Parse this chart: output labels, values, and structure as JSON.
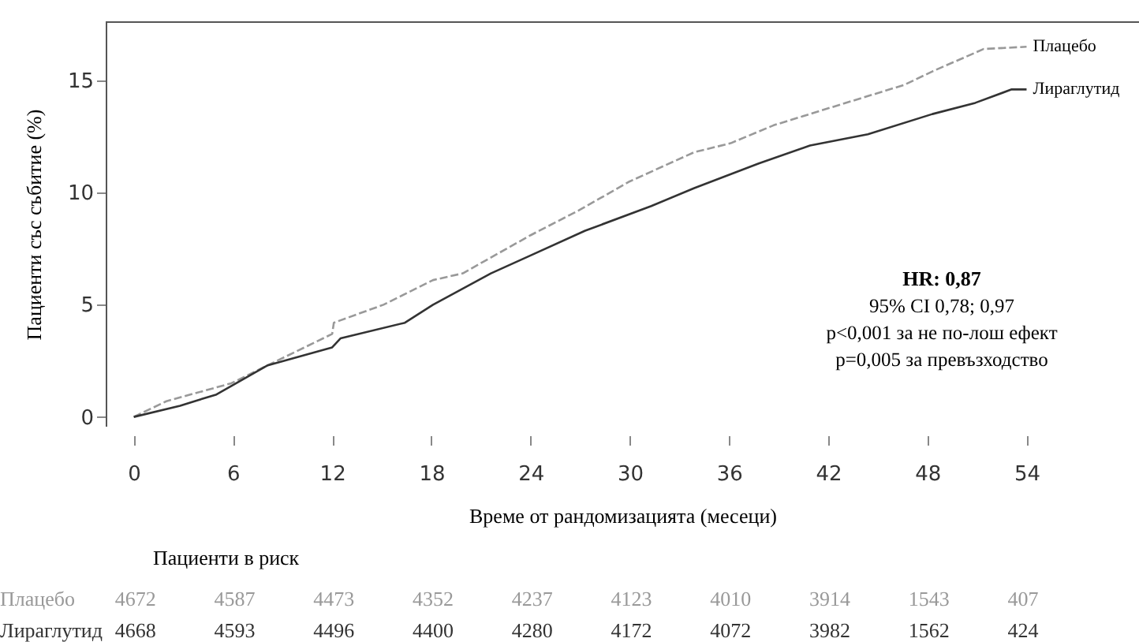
{
  "chart_data": {
    "type": "line",
    "xlabel": "Време от рандомизацията (месеци)",
    "ylabel": "Пациенти със събитие (%)",
    "xlim": [
      -1.7,
      60.8
    ],
    "ylim": [
      -0.4,
      17.6
    ],
    "xticks": [
      0,
      6,
      12,
      18,
      24,
      30,
      36,
      42,
      48,
      54
    ],
    "yticks": [
      0,
      5,
      10,
      15
    ],
    "grid": false,
    "series": [
      {
        "name": "Плацебо",
        "color": "#999999",
        "line_style": "dashed",
        "x": [
          0,
          1.97,
          5.9,
          8.1,
          12,
          12.1,
          15.1,
          18.1,
          19.9,
          24,
          26.9,
          30,
          33.9,
          36.1,
          38.7,
          42.2,
          46.6,
          48.3,
          51.4,
          54
        ],
        "values": [
          0,
          0.7,
          1.5,
          2.3,
          3.7,
          4.2,
          5.0,
          6.1,
          6.4,
          8.1,
          9.2,
          10.5,
          11.8,
          12.2,
          13.0,
          13.8,
          14.8,
          15.4,
          16.4,
          16.5
        ]
      },
      {
        "name": "Лираглутид",
        "color": "#333333",
        "line_style": "solid",
        "x": [
          0,
          2.8,
          5,
          8.1,
          12,
          12.5,
          16.4,
          18.1,
          21.6,
          24,
          27.3,
          31.3,
          33.9,
          37.8,
          40.9,
          44.4,
          48.3,
          50.9,
          53.1,
          54
        ],
        "values": [
          0,
          0.5,
          1.0,
          2.3,
          3.1,
          3.5,
          4.2,
          5.0,
          6.4,
          7.2,
          8.3,
          9.4,
          10.2,
          11.3,
          12.1,
          12.6,
          13.5,
          14.0,
          14.6,
          14.6
        ]
      }
    ],
    "annotations": [
      "HR: 0,87",
      "95% CI 0,78; 0,97",
      "p<0,001 за не по-лош ефект",
      "p=0,005 за превъзходство",
      "Пациенти в риск",
      "Плацебо",
      "4672",
      "4587",
      "4473",
      "4352",
      "4237",
      "4123",
      "4010",
      "3914",
      "1543",
      "407",
      "Лираглутид",
      "4668",
      "4593",
      "4496",
      "4400",
      "4280",
      "4172",
      "4072",
      "3982",
      "1562",
      "424"
    ]
  }
}
